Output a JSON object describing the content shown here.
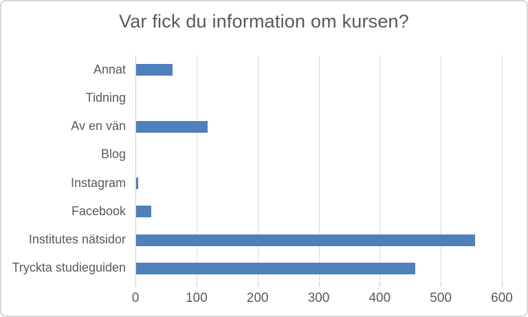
{
  "chart_data": {
    "type": "bar",
    "orientation": "horizontal",
    "title": "Var fick du information om kursen?",
    "categories": [
      "Annat",
      "Tidning",
      "Av en vän",
      "Blog",
      "Instagram",
      "Facebook",
      "Institutes nätsidor",
      "Tryckta studieguiden"
    ],
    "values": [
      60,
      0,
      117,
      0,
      3,
      25,
      555,
      457
    ],
    "xlabel": "",
    "ylabel": "",
    "xlim": [
      0,
      600
    ],
    "xticks": [
      0,
      100,
      200,
      300,
      400,
      500,
      600
    ],
    "grid": "vertical",
    "legend": "none",
    "bar_color": "#4e80bc",
    "text_color": "#595959",
    "gridline_color": "#d9d9d9",
    "background_color": "#ffffff",
    "border_color": "#d6d6d6"
  }
}
